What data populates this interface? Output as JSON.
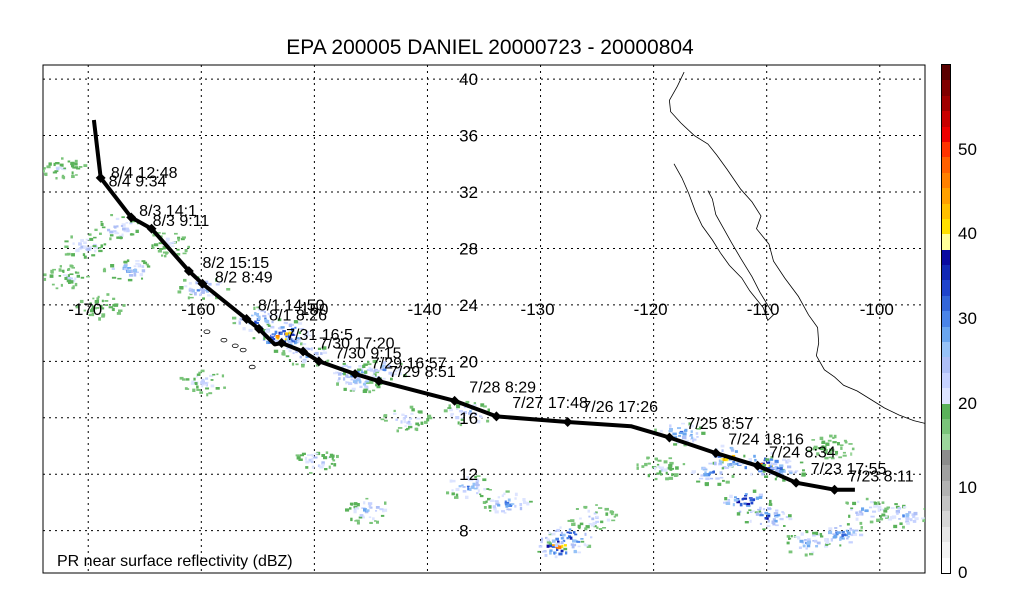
{
  "title": "EPA 200005 DANIEL 20000723 - 20000804",
  "map_label": "PR near surface reflectivity (dBZ)",
  "lon_ticks": [
    "-170",
    "-160",
    "-150",
    "-140",
    "-130",
    "-120",
    "-110",
    "-100"
  ],
  "lat_ticks": [
    "40",
    "36",
    "32",
    "28",
    "24",
    "20",
    "16",
    "12",
    "8"
  ],
  "lon_values": [
    -170,
    -160,
    -150,
    -140,
    -130,
    -120,
    -110,
    -100
  ],
  "lat_values": [
    40,
    36,
    32,
    28,
    24,
    20,
    16,
    12,
    8
  ],
  "lon_range": [
    -174,
    -96
  ],
  "lat_range": [
    5,
    41
  ],
  "track_labels": [
    {
      "text": "8/4 12:48",
      "lon": -168.0,
      "lat": 33.0
    },
    {
      "text": "8/4 9:34",
      "lon": -168.2,
      "lat": 32.4
    },
    {
      "text": "8/3 14:1",
      "lon": -165.5,
      "lat": 30.3
    },
    {
      "text": "8/3 9:11",
      "lon": -164.3,
      "lat": 29.6
    },
    {
      "text": "8/2 15:15",
      "lon": -159.9,
      "lat": 26.6
    },
    {
      "text": "8/2 8:49",
      "lon": -158.8,
      "lat": 25.6
    },
    {
      "text": "8/1 14:50",
      "lon": -155.0,
      "lat": 23.6
    },
    {
      "text": "8/1 8:26",
      "lon": -154.0,
      "lat": 22.9
    },
    {
      "text": "7/31 16:5",
      "lon": -152.5,
      "lat": 21.5
    },
    {
      "text": "7/30 17:20",
      "lon": -149.6,
      "lat": 20.9
    },
    {
      "text": "7/30 9:15",
      "lon": -148.2,
      "lat": 20.2
    },
    {
      "text": "7/29 16:57",
      "lon": -145.0,
      "lat": 19.5
    },
    {
      "text": "7/29 8:51",
      "lon": -143.4,
      "lat": 18.9
    },
    {
      "text": "7/28 8:29",
      "lon": -136.3,
      "lat": 17.8
    },
    {
      "text": "7/27 17:48",
      "lon": -132.5,
      "lat": 16.7
    },
    {
      "text": "7/26 17:26",
      "lon": -126.3,
      "lat": 16.4
    },
    {
      "text": "7/25 8:57",
      "lon": -117.1,
      "lat": 15.2
    },
    {
      "text": "7/24 18:16",
      "lon": -113.4,
      "lat": 14.1
    },
    {
      "text": "7/24 8:34",
      "lon": -109.8,
      "lat": 13.2
    },
    {
      "text": "7/23 17:55",
      "lon": -106.1,
      "lat": 12.0
    },
    {
      "text": "7/23 8:11",
      "lon": -102.8,
      "lat": 11.5
    }
  ],
  "track_points": [
    {
      "lon": -168.9,
      "lat": 33.0
    },
    {
      "lon": -166.2,
      "lat": 30.2
    },
    {
      "lon": -164.4,
      "lat": 29.4
    },
    {
      "lon": -161.1,
      "lat": 26.4
    },
    {
      "lon": -159.9,
      "lat": 25.5
    },
    {
      "lon": -156.0,
      "lat": 23.0
    },
    {
      "lon": -154.9,
      "lat": 22.3
    },
    {
      "lon": -152.9,
      "lat": 21.3
    },
    {
      "lon": -151.0,
      "lat": 20.7
    },
    {
      "lon": -149.6,
      "lat": 20.0
    },
    {
      "lon": -146.4,
      "lat": 19.1
    },
    {
      "lon": -144.3,
      "lat": 18.6
    },
    {
      "lon": -137.6,
      "lat": 17.2
    },
    {
      "lon": -133.9,
      "lat": 16.1
    },
    {
      "lon": -127.6,
      "lat": 15.7
    },
    {
      "lon": -118.6,
      "lat": 14.6
    },
    {
      "lon": -114.5,
      "lat": 13.5
    },
    {
      "lon": -110.8,
      "lat": 12.6
    },
    {
      "lon": -107.4,
      "lat": 11.4
    },
    {
      "lon": -104.0,
      "lat": 10.9
    }
  ],
  "track_line": [
    {
      "lon": -169.5,
      "lat": 37.1
    },
    {
      "lon": -168.9,
      "lat": 33.0
    },
    {
      "lon": -166.2,
      "lat": 30.2
    },
    {
      "lon": -164.4,
      "lat": 29.4
    },
    {
      "lon": -161.1,
      "lat": 26.4
    },
    {
      "lon": -159.9,
      "lat": 25.5
    },
    {
      "lon": -156.0,
      "lat": 23.0
    },
    {
      "lon": -154.9,
      "lat": 22.3
    },
    {
      "lon": -153.5,
      "lat": 21.2
    },
    {
      "lon": -152.9,
      "lat": 21.3
    },
    {
      "lon": -151.0,
      "lat": 20.7
    },
    {
      "lon": -149.6,
      "lat": 20.0
    },
    {
      "lon": -146.4,
      "lat": 19.1
    },
    {
      "lon": -144.3,
      "lat": 18.6
    },
    {
      "lon": -140.0,
      "lat": 17.7
    },
    {
      "lon": -137.6,
      "lat": 17.2
    },
    {
      "lon": -133.9,
      "lat": 16.1
    },
    {
      "lon": -127.6,
      "lat": 15.7
    },
    {
      "lon": -122.0,
      "lat": 15.4
    },
    {
      "lon": -118.6,
      "lat": 14.6
    },
    {
      "lon": -114.5,
      "lat": 13.5
    },
    {
      "lon": -110.8,
      "lat": 12.6
    },
    {
      "lon": -107.4,
      "lat": 11.4
    },
    {
      "lon": -104.0,
      "lat": 10.9
    },
    {
      "lon": -102.2,
      "lat": 10.9
    }
  ],
  "coastline_main": [
    {
      "lon": -117.3,
      "lat": 40.5
    },
    {
      "lon": -117.9,
      "lat": 39.5
    },
    {
      "lon": -118.6,
      "lat": 38.5
    },
    {
      "lon": -118.5,
      "lat": 37.7
    },
    {
      "lon": -117.6,
      "lat": 36.9
    },
    {
      "lon": -116.4,
      "lat": 36.0
    },
    {
      "lon": -115.2,
      "lat": 35.4
    },
    {
      "lon": -114.4,
      "lat": 34.6
    },
    {
      "lon": -113.5,
      "lat": 33.6
    },
    {
      "lon": -112.3,
      "lat": 32.2
    },
    {
      "lon": -111.3,
      "lat": 31.3
    },
    {
      "lon": -110.5,
      "lat": 30.3
    },
    {
      "lon": -110.9,
      "lat": 29.4
    },
    {
      "lon": -109.8,
      "lat": 28.3
    },
    {
      "lon": -109.4,
      "lat": 27.1
    },
    {
      "lon": -108.4,
      "lat": 25.9
    },
    {
      "lon": -107.2,
      "lat": 24.6
    },
    {
      "lon": -106.3,
      "lat": 23.3
    },
    {
      "lon": -105.5,
      "lat": 22.4
    },
    {
      "lon": -105.4,
      "lat": 21.3
    },
    {
      "lon": -105.6,
      "lat": 20.4
    },
    {
      "lon": -104.9,
      "lat": 19.4
    },
    {
      "lon": -104.0,
      "lat": 18.9
    },
    {
      "lon": -103.2,
      "lat": 18.3
    },
    {
      "lon": -102.0,
      "lat": 17.9
    },
    {
      "lon": -100.8,
      "lat": 17.3
    },
    {
      "lon": -99.6,
      "lat": 16.7
    },
    {
      "lon": -98.3,
      "lat": 16.2
    },
    {
      "lon": -97.0,
      "lat": 15.8
    },
    {
      "lon": -96.0,
      "lat": 15.6
    }
  ],
  "coastline_baja": [
    {
      "lon": -118.2,
      "lat": 34.0
    },
    {
      "lon": -117.5,
      "lat": 33.0
    },
    {
      "lon": -116.9,
      "lat": 31.9
    },
    {
      "lon": -116.3,
      "lat": 30.6
    },
    {
      "lon": -115.7,
      "lat": 29.6
    },
    {
      "lon": -114.8,
      "lat": 28.6
    },
    {
      "lon": -114.1,
      "lat": 27.7
    },
    {
      "lon": -113.3,
      "lat": 26.8
    },
    {
      "lon": -112.2,
      "lat": 25.9
    },
    {
      "lon": -111.5,
      "lat": 25.0
    },
    {
      "lon": -110.3,
      "lat": 23.8
    },
    {
      "lon": -109.9,
      "lat": 22.9
    },
    {
      "lon": -109.4,
      "lat": 23.3
    },
    {
      "lon": -110.0,
      "lat": 24.1
    },
    {
      "lon": -110.6,
      "lat": 24.9
    },
    {
      "lon": -111.3,
      "lat": 26.0
    },
    {
      "lon": -112.3,
      "lat": 27.3
    },
    {
      "lon": -113.1,
      "lat": 28.4
    },
    {
      "lon": -113.8,
      "lat": 29.4
    },
    {
      "lon": -114.5,
      "lat": 30.4
    },
    {
      "lon": -114.8,
      "lat": 31.5
    },
    {
      "lon": -115.2,
      "lat": 32.1
    }
  ],
  "islands": [
    {
      "lon": -159.5,
      "lat": 22.1
    },
    {
      "lon": -158.0,
      "lat": 21.5
    },
    {
      "lon": -157.0,
      "lat": 21.1
    },
    {
      "lon": -156.3,
      "lat": 20.8
    },
    {
      "lon": -155.5,
      "lat": 19.6
    }
  ],
  "precip_cells": [
    {
      "lon": -172.5,
      "lat": 33.8,
      "dbz": 22
    },
    {
      "lon": -167.5,
      "lat": 29.6,
      "dbz": 28
    },
    {
      "lon": -170.5,
      "lat": 28.2,
      "dbz": 25
    },
    {
      "lon": -163.0,
      "lat": 28.4,
      "dbz": 22
    },
    {
      "lon": -166.5,
      "lat": 26.5,
      "dbz": 30
    },
    {
      "lon": -172.0,
      "lat": 26.0,
      "dbz": 22
    },
    {
      "lon": -160.0,
      "lat": 25.3,
      "dbz": 32
    },
    {
      "lon": -155.2,
      "lat": 23.0,
      "dbz": 35
    },
    {
      "lon": -153.3,
      "lat": 21.7,
      "dbz": 47
    },
    {
      "lon": -152.5,
      "lat": 22.1,
      "dbz": 40
    },
    {
      "lon": -150.7,
      "lat": 20.6,
      "dbz": 30
    },
    {
      "lon": -146.7,
      "lat": 19.2,
      "dbz": 33
    },
    {
      "lon": -146.0,
      "lat": 18.7,
      "dbz": 28
    },
    {
      "lon": -144.0,
      "lat": 19.4,
      "dbz": 30
    },
    {
      "lon": -136.5,
      "lat": 16.4,
      "dbz": 28
    },
    {
      "lon": -142.0,
      "lat": 16.0,
      "dbz": 25
    },
    {
      "lon": -150.0,
      "lat": 13.0,
      "dbz": 25
    },
    {
      "lon": -145.5,
      "lat": 9.5,
      "dbz": 28
    },
    {
      "lon": -136.5,
      "lat": 11.2,
      "dbz": 30
    },
    {
      "lon": -133.0,
      "lat": 10.0,
      "dbz": 32
    },
    {
      "lon": -128.5,
      "lat": 7.0,
      "dbz": 48
    },
    {
      "lon": -127.5,
      "lat": 7.6,
      "dbz": 40
    },
    {
      "lon": -125.5,
      "lat": 9.0,
      "dbz": 25
    },
    {
      "lon": -117.8,
      "lat": 15.0,
      "dbz": 35
    },
    {
      "lon": -115.0,
      "lat": 12.2,
      "dbz": 33
    },
    {
      "lon": -113.5,
      "lat": 13.3,
      "dbz": 45
    },
    {
      "lon": -112.0,
      "lat": 10.1,
      "dbz": 42
    },
    {
      "lon": -110.6,
      "lat": 12.8,
      "dbz": 47
    },
    {
      "lon": -108.8,
      "lat": 12.5,
      "dbz": 32
    },
    {
      "lon": -110.0,
      "lat": 9.0,
      "dbz": 35
    },
    {
      "lon": -106.5,
      "lat": 7.2,
      "dbz": 30
    },
    {
      "lon": -103.5,
      "lat": 7.8,
      "dbz": 33
    },
    {
      "lon": -101.5,
      "lat": 9.5,
      "dbz": 28
    },
    {
      "lon": -98.0,
      "lat": 9.2,
      "dbz": 30
    },
    {
      "lon": -104.5,
      "lat": 14.0,
      "dbz": 20
    },
    {
      "lon": -119.5,
      "lat": 12.5,
      "dbz": 22
    },
    {
      "lon": -160.0,
      "lat": 18.6,
      "dbz": 24
    },
    {
      "lon": -169.0,
      "lat": 24.0,
      "dbz": 20
    }
  ],
  "colorbar": {
    "ticks": [
      "0",
      "10",
      "20",
      "30",
      "40",
      "50"
    ],
    "tick_values": [
      0,
      10,
      20,
      30,
      40,
      50
    ],
    "range": [
      0,
      60
    ],
    "colors": [
      "#ffffff",
      "#f4f4f4",
      "#e6e6e6",
      "#d6d6d6",
      "#c4c4c4",
      "#b2b2b2",
      "#a0a0a0",
      "#8c8c8c",
      "#9cd69c",
      "#7ac47a",
      "#5ab25a",
      "#dde4ff",
      "#c6d2ff",
      "#aebff6",
      "#96c2f7",
      "#6aa6ef",
      "#4a84e8",
      "#3366d9",
      "#1f44cc",
      "#1128b5",
      "#0a0aa0",
      "#ffff99",
      "#ffe100",
      "#ffc000",
      "#ffa000",
      "#ff8000",
      "#ff6000",
      "#ff3300",
      "#ee0000",
      "#c80000",
      "#a00000",
      "#800000",
      "#5a0000"
    ]
  },
  "colors": {
    "track": "#000000",
    "coast": "#000000",
    "grid": "#000000",
    "frame": "#000000"
  }
}
